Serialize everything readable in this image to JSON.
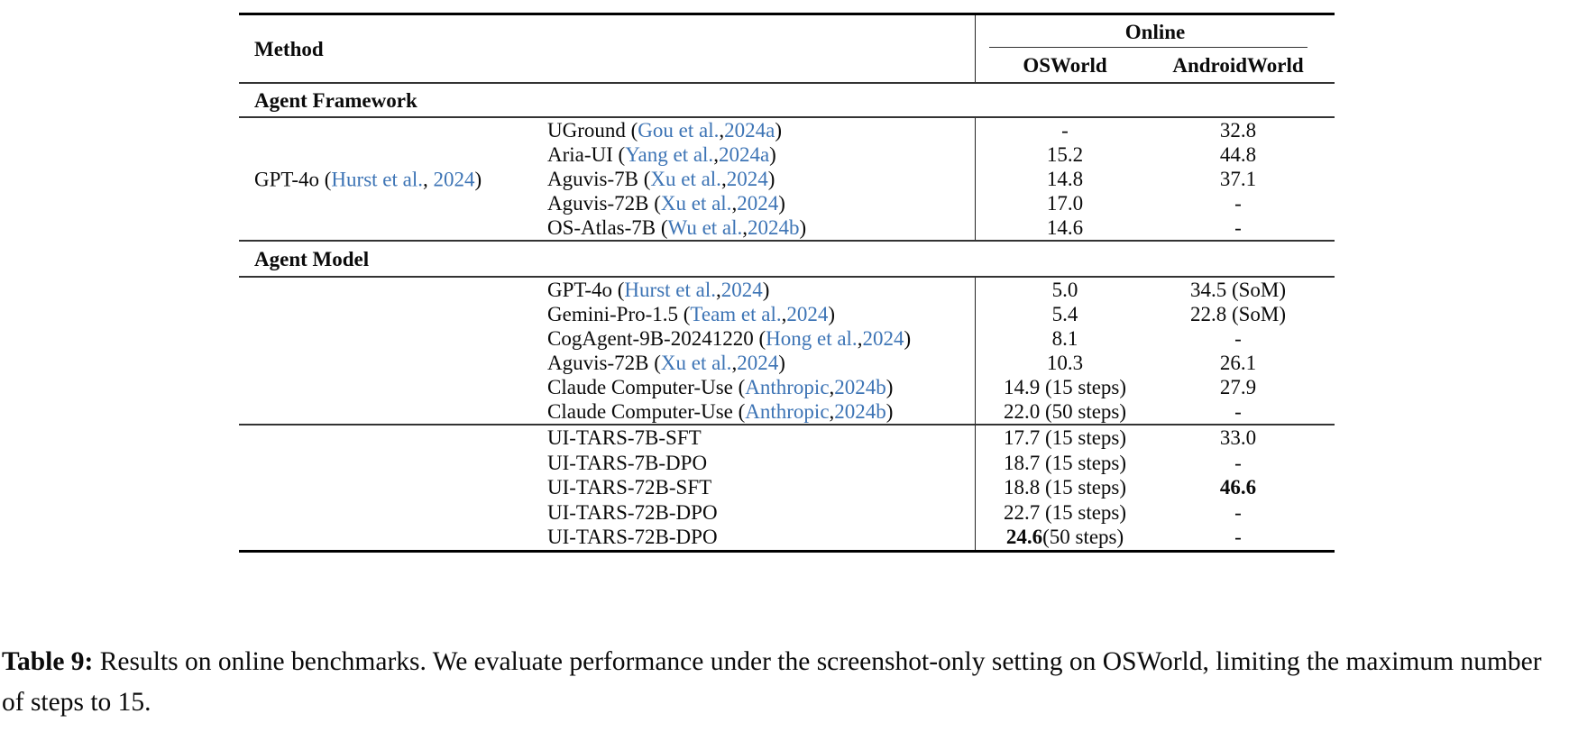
{
  "colors": {
    "link_blue": "#3d74b5",
    "text": "#0b0b0b"
  },
  "table": {
    "header": {
      "method": "Method",
      "online": "Online",
      "osworld": "OSWorld",
      "androidworld": "AndroidWorld"
    },
    "sections": [
      {
        "title": "Agent Framework",
        "blocks": [
          {
            "group": {
              "pre": "GPT-4o (",
              "cite": "Hurst et al.",
              "sep": ", ",
              "year": "2024",
              "post": ")"
            },
            "rows": [
              {
                "pre": "UGround (",
                "cite": "Gou et al.",
                "sep": ", ",
                "year": "2024a",
                "post": ")",
                "os": "-",
                "aw": "32.8"
              },
              {
                "pre": "Aria-UI (",
                "cite": "Yang et al.",
                "sep": ", ",
                "year": "2024a",
                "post": ")",
                "os": "15.2",
                "aw": "44.8"
              },
              {
                "pre": "Aguvis-7B (",
                "cite": "Xu et al.",
                "sep": ", ",
                "year": "2024",
                "post": ")",
                "os": "14.8",
                "aw": "37.1"
              },
              {
                "pre": "Aguvis-72B (",
                "cite": "Xu et al.",
                "sep": ", ",
                "year": "2024",
                "post": ")",
                "os": "17.0",
                "aw": "-"
              },
              {
                "pre": "OS-Atlas-7B (",
                "cite": "Wu et al.",
                "sep": ", ",
                "year": "2024b",
                "post": ")",
                "os": "14.6",
                "aw": "-"
              }
            ]
          }
        ]
      },
      {
        "title": "Agent Model",
        "blocks": [
          {
            "rows": [
              {
                "pre": "GPT-4o (",
                "cite": "Hurst et al.",
                "sep": ", ",
                "year": "2024",
                "post": ")",
                "os": "5.0",
                "aw": "34.5 (SoM)"
              },
              {
                "pre": "Gemini-Pro-1.5 (",
                "cite": "Team et al.",
                "sep": ", ",
                "year": "2024",
                "post": ")",
                "os": "5.4",
                "aw": "22.8 (SoM)"
              },
              {
                "pre": "CogAgent-9B-20241220 (",
                "cite": "Hong et al.",
                "sep": ", ",
                "year": "2024",
                "post": ")",
                "os": "8.1",
                "aw": "-"
              },
              {
                "pre": "Aguvis-72B (",
                "cite": "Xu et al.",
                "sep": ", ",
                "year": "2024",
                "post": ")",
                "os": "10.3",
                "aw": "26.1"
              },
              {
                "pre": "Claude Computer-Use (",
                "cite": "Anthropic",
                "sep": ", ",
                "year": "2024b",
                "post": ")",
                "os": "14.9 (15 steps)",
                "aw": "27.9"
              },
              {
                "pre": "Claude Computer-Use (",
                "cite": "Anthropic",
                "sep": ", ",
                "year": "2024b",
                "post": ")",
                "os": "22.0 (50 steps)",
                "aw": "-"
              }
            ]
          },
          {
            "rows": [
              {
                "pre": "UI-TARS-7B-SFT",
                "os": "17.7 (15 steps)",
                "aw": "33.0"
              },
              {
                "pre": "UI-TARS-7B-DPO",
                "os": "18.7 (15 steps)",
                "aw": "-"
              },
              {
                "pre": "UI-TARS-72B-SFT",
                "os": "18.8 (15 steps)",
                "aw_b": "46.6"
              },
              {
                "pre": "UI-TARS-72B-DPO",
                "os": "22.7 (15 steps)",
                "aw": "-"
              },
              {
                "pre": "UI-TARS-72B-DPO",
                "os_b": "24.6",
                "os": " (50 steps)",
                "aw": "-"
              }
            ]
          }
        ]
      }
    ]
  },
  "caption": {
    "label": "Table 9:",
    "text": "Results on online benchmarks. We evaluate performance under the screenshot-only setting on OSWorld, limiting the maximum number of steps to 15."
  }
}
